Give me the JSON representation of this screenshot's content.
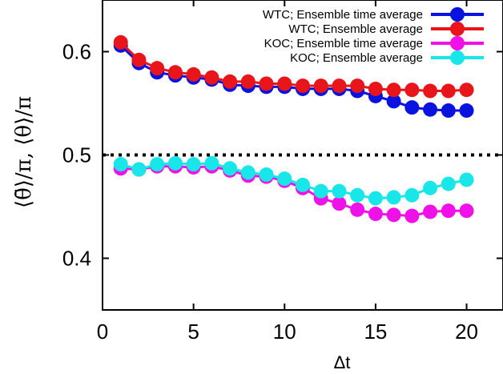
{
  "chart_data": {
    "type": "line",
    "xlabel": "Δt",
    "ylabel": "⟨θ̄⟩/π, ⟨θ⟩/π",
    "xlim": [
      0,
      22
    ],
    "ylim": [
      0.35,
      0.65
    ],
    "xticks": [
      0,
      5,
      10,
      15,
      20
    ],
    "yticks": [
      0.4,
      0.5,
      0.6
    ],
    "xtick_labels": [
      "0",
      "5",
      "10",
      "15",
      "20"
    ],
    "ytick_labels": [
      "0.4",
      "0.5",
      "0.6"
    ],
    "reference_line": {
      "y": 0.5,
      "style": "dotted",
      "color": "#000000"
    },
    "legend_position": "top-right",
    "x": [
      1,
      2,
      3,
      4,
      5,
      6,
      7,
      8,
      9,
      10,
      11,
      12,
      13,
      14,
      15,
      16,
      17,
      18,
      19,
      20
    ],
    "series": [
      {
        "name": "WTC; Ensemble time average",
        "color": "#0a12e0",
        "values": [
          0.606,
          0.589,
          0.58,
          0.577,
          0.575,
          0.573,
          0.568,
          0.567,
          0.566,
          0.566,
          0.564,
          0.564,
          0.564,
          0.562,
          0.557,
          0.552,
          0.546,
          0.544,
          0.543,
          0.543
        ]
      },
      {
        "name": "WTC; Ensemble average",
        "color": "#e8151b",
        "values": [
          0.609,
          0.592,
          0.584,
          0.58,
          0.578,
          0.575,
          0.571,
          0.571,
          0.569,
          0.569,
          0.567,
          0.567,
          0.567,
          0.567,
          0.564,
          0.563,
          0.563,
          0.562,
          0.562,
          0.563
        ]
      },
      {
        "name": "KOC; Ensemble time average",
        "color": "#f011e9",
        "values": [
          0.487,
          0.486,
          0.489,
          0.489,
          0.488,
          0.489,
          0.485,
          0.48,
          0.479,
          0.475,
          0.468,
          0.458,
          0.453,
          0.447,
          0.443,
          0.442,
          0.441,
          0.445,
          0.446,
          0.446
        ]
      },
      {
        "name": "KOC; Ensemble average",
        "color": "#18e6e9",
        "values": [
          0.491,
          0.486,
          0.491,
          0.492,
          0.491,
          0.492,
          0.487,
          0.483,
          0.481,
          0.477,
          0.471,
          0.465,
          0.465,
          0.461,
          0.458,
          0.459,
          0.461,
          0.468,
          0.472,
          0.476
        ]
      }
    ]
  }
}
